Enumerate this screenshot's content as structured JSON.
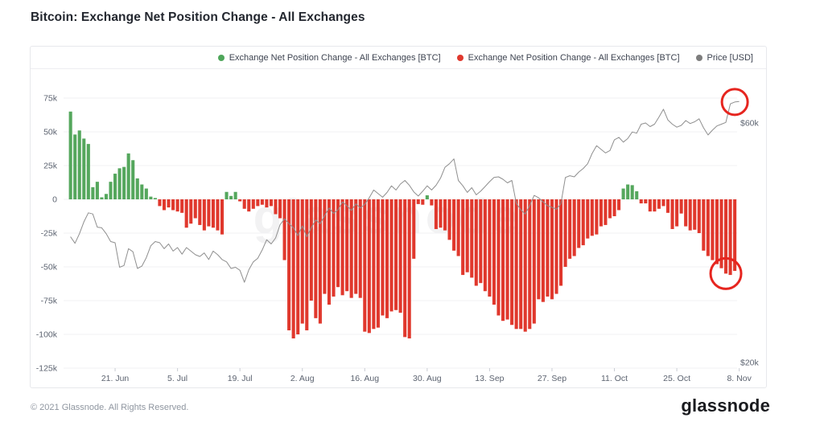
{
  "page_title": "Bitcoin: Exchange Net Position Change - All Exchanges",
  "legend": [
    {
      "label": "Exchange Net Position Change - All Exchanges [BTC]",
      "color": "#4ea65a"
    },
    {
      "label": "Exchange Net Position Change - All Exchanges [BTC]",
      "color": "#e0382d"
    },
    {
      "label": "Price [USD]",
      "color": "#7d7d7d"
    }
  ],
  "watermark": "glassnode",
  "footer": {
    "copyright": "© 2021 Glassnode. All Rights Reserved.",
    "brand": "glassnode"
  },
  "colors": {
    "positive_bar": "#55a75d",
    "negative_bar": "#e0382d",
    "price_line": "#8f8f8f",
    "grid": "#f0f0f3",
    "axis_text": "#5c6370",
    "tick_mark": "#c9ccd3",
    "annotation": "#e6251f",
    "watermark": "#1e1e28"
  },
  "chart_data": {
    "type": "bar+line",
    "title": "Bitcoin: Exchange Net Position Change - All Exchanges",
    "bar_series_name": "Exchange Net Position Change - All Exchanges [BTC]",
    "line_series_name": "Price [USD]",
    "bar_unit": "thousand BTC",
    "price_unit": "thousand USD",
    "grid": true,
    "legend_position": "top-right",
    "x_ticks": [
      {
        "label": "21. Jun",
        "day": 10
      },
      {
        "label": "5. Jul",
        "day": 24
      },
      {
        "label": "19. Jul",
        "day": 38
      },
      {
        "label": "2. Aug",
        "day": 52
      },
      {
        "label": "16. Aug",
        "day": 66
      },
      {
        "label": "30. Aug",
        "day": 80
      },
      {
        "label": "13. Sep",
        "day": 94
      },
      {
        "label": "27. Sep",
        "day": 108
      },
      {
        "label": "11. Oct",
        "day": 122
      },
      {
        "label": "25. Oct",
        "day": 136
      },
      {
        "label": "8. Nov",
        "day": 150
      }
    ],
    "left_axis": {
      "ticks": [
        {
          "label": "75k",
          "value": 75
        },
        {
          "label": "50k",
          "value": 50
        },
        {
          "label": "25k",
          "value": 25
        },
        {
          "label": "0",
          "value": 0
        },
        {
          "label": "-25k",
          "value": -25
        },
        {
          "label": "-50k",
          "value": -50
        },
        {
          "label": "-75k",
          "value": -75
        },
        {
          "label": "-100k",
          "value": -100
        },
        {
          "label": "-125k",
          "value": -125
        }
      ]
    },
    "right_axis": {
      "ticks": [
        {
          "label": "$60k",
          "value": 60
        },
        {
          "label": "$20k",
          "value": 20
        }
      ]
    },
    "bars_btc_k": [
      65,
      48,
      51,
      45,
      41,
      9,
      13,
      1.5,
      4,
      13,
      19,
      23,
      24,
      34,
      29,
      15.5,
      11,
      8,
      2,
      1,
      -5,
      -8,
      -6,
      -8,
      -9,
      -10,
      -21,
      -18,
      -14,
      -19,
      -23,
      -20,
      -21,
      -23,
      -26,
      5.5,
      2.5,
      5.5,
      -1.5,
      -7,
      -9,
      -7,
      -5,
      -4,
      -6,
      -5,
      -11,
      -14,
      -45,
      -97,
      -103,
      -100,
      -92,
      -97,
      -75,
      -88,
      -92,
      -70,
      -78,
      -72,
      -65,
      -71,
      -68,
      -73,
      -70,
      -73,
      -98,
      -99,
      -96,
      -95,
      -86,
      -88,
      -83,
      -82,
      -84,
      -102,
      -103,
      -44,
      -3.5,
      -4,
      3,
      -4.5,
      -22,
      -21,
      -23,
      -30,
      -38,
      -42,
      -56,
      -54,
      -58,
      -64,
      -62,
      -68,
      -72,
      -78,
      -86,
      -90,
      -89,
      -93,
      -96,
      -96,
      -98,
      -96,
      -92,
      -74,
      -76,
      -72,
      -74,
      -70,
      -64,
      -50,
      -44,
      -42,
      -36,
      -34,
      -29,
      -27,
      -26,
      -20,
      -19,
      -14,
      -12.5,
      -8,
      8,
      11,
      10.5,
      6,
      -3,
      -3,
      -9,
      -9,
      -7,
      -5,
      -10,
      -22,
      -20,
      -10.5,
      -20,
      -23,
      -22.5,
      -25,
      -38,
      -42,
      -45,
      -48,
      -51,
      -55,
      -56,
      -53
    ],
    "price_usd_k": [
      41,
      39.9,
      41.5,
      43.5,
      45,
      44.8,
      42.6,
      42.5,
      41.5,
      40.2,
      40,
      35.9,
      36.2,
      39,
      38.5,
      35.7,
      36.1,
      37.5,
      39.5,
      40.2,
      40,
      39,
      39.8,
      38.6,
      39.2,
      38.1,
      39.2,
      38.6,
      38,
      37.7,
      38.3,
      37.2,
      38.6,
      38,
      37.2,
      36.8,
      35.7,
      35.9,
      35.4,
      33.4,
      35.5,
      36.8,
      37.4,
      38.8,
      40.5,
      39.8,
      40.8,
      43,
      44,
      43.2,
      42.5,
      41.2,
      42.8,
      41,
      42.5,
      43.8,
      43.2,
      44.5,
      45.8,
      44.9,
      45.5,
      46.8,
      46.2,
      45.4,
      46.5,
      45.8,
      46.4,
      47.5,
      48.8,
      48.2,
      47.6,
      48.4,
      49.5,
      48.8,
      49.8,
      50.4,
      49.6,
      48.5,
      47.8,
      48.6,
      49.5,
      48.8,
      49.6,
      50.8,
      52.6,
      53.2,
      54,
      50.4,
      49.5,
      48.4,
      49.2,
      48,
      48.6,
      49.4,
      50.2,
      50.9,
      51,
      50.6,
      50,
      50.4,
      46.6,
      45.5,
      44.8,
      46.2,
      47.9,
      47.5,
      46.8,
      46.2,
      45.9,
      45.6,
      46.5,
      50.9,
      51.2,
      51,
      51.8,
      52.4,
      53.2,
      54.9,
      56.2,
      55.6,
      55,
      55.4,
      57.2,
      57.6,
      56.8,
      57.4,
      58.5,
      58.3,
      59.8,
      60,
      59.4,
      59.8,
      61,
      62.3,
      60.5,
      59.8,
      59.3,
      59.6,
      60.4,
      59.9,
      60.2,
      60.7,
      59.2,
      58,
      58.8,
      59.5,
      59.8,
      60.1,
      63.2,
      63.5,
      63.6
    ],
    "annotations": [
      {
        "shape": "circle",
        "series": "price",
        "day": 149,
        "radius": 16
      },
      {
        "shape": "circle",
        "series": "bars",
        "day": 147,
        "radius": 19
      }
    ]
  }
}
